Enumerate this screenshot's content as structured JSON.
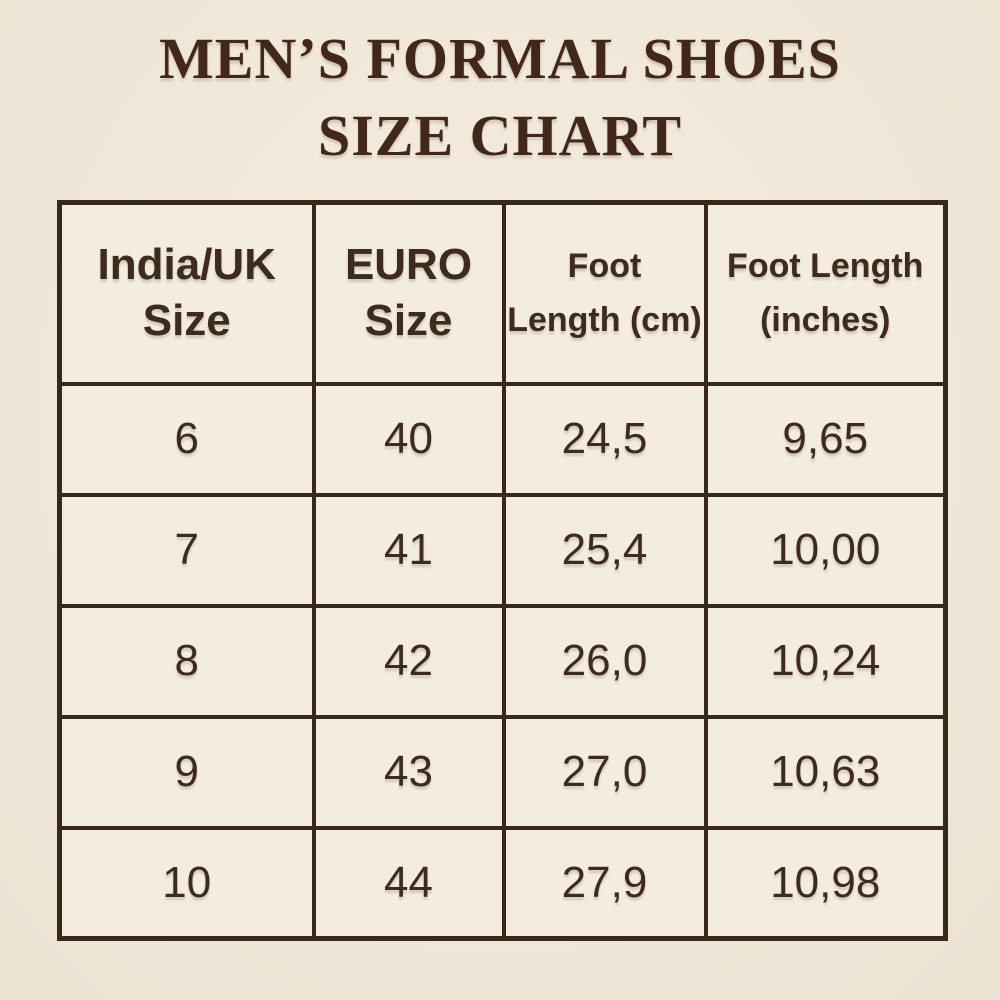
{
  "page": {
    "background_color": "#f1e8da",
    "border_color": "#38281a",
    "text_color": "#3d2c1d",
    "title_color": "#42281a"
  },
  "title": {
    "line1": "MEN’S FORMAL SHOES",
    "line2": "SIZE CHART"
  },
  "table": {
    "headers": [
      {
        "line1": "India/UK",
        "line2": "Size"
      },
      {
        "line1": "EURO",
        "line2": "Size"
      },
      {
        "line1": "Foot",
        "line2": "Length (cm)"
      },
      {
        "line1": "Foot Length",
        "line2": "(inches)"
      }
    ],
    "rows": [
      [
        "6",
        "40",
        "24,5",
        "9,65"
      ],
      [
        "7",
        "41",
        "25,4",
        "10,00"
      ],
      [
        "8",
        "42",
        "26,0",
        "10,24"
      ],
      [
        "9",
        "43",
        "27,0",
        "10,63"
      ],
      [
        "10",
        "44",
        "27,9",
        "10,98"
      ]
    ]
  },
  "chart_data": {
    "type": "table",
    "title": "MEN’S FORMAL SHOES SIZE CHART",
    "columns": [
      "India/UK Size",
      "EURO Size",
      "Foot Length (cm)",
      "Foot Length (inches)"
    ],
    "rows": [
      [
        "6",
        "40",
        "24,5",
        "9,65"
      ],
      [
        "7",
        "41",
        "25,4",
        "10,00"
      ],
      [
        "8",
        "42",
        "26,0",
        "10,24"
      ],
      [
        "9",
        "43",
        "27,0",
        "10,63"
      ],
      [
        "10",
        "44",
        "27,9",
        "10,98"
      ]
    ]
  }
}
